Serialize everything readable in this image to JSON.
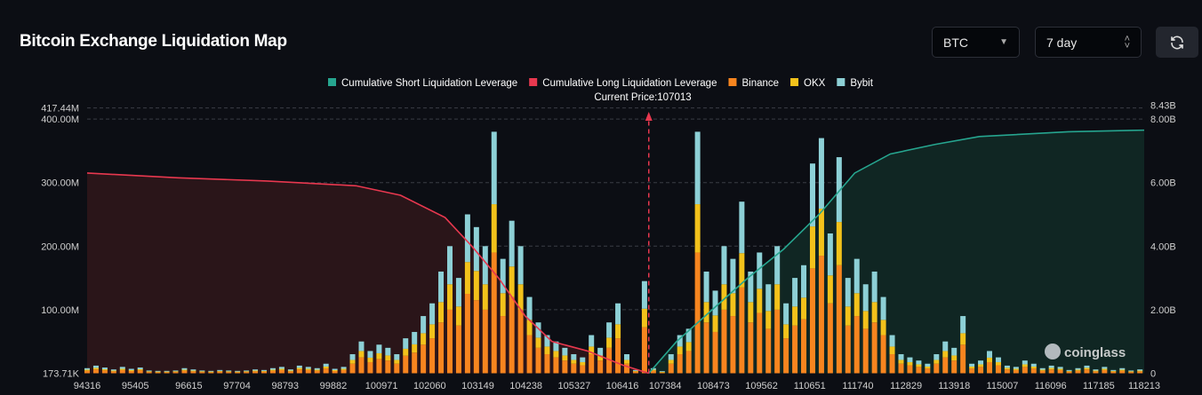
{
  "header": {
    "title": "Bitcoin Exchange Liquidation Map",
    "coin_select": "BTC",
    "period_select": "7 day",
    "refresh_icon": "refresh-icon"
  },
  "chart_data": {
    "type": "bar",
    "title": "",
    "legend": [
      {
        "name": "Cumulative Short Liquidation Leverage",
        "color": "#26a58f"
      },
      {
        "name": "Cumulative Long Liquidation Leverage",
        "color": "#e8384f"
      },
      {
        "name": "Binance",
        "color": "#f7851f"
      },
      {
        "name": "OKX",
        "color": "#f3c21b"
      },
      {
        "name": "Bybit",
        "color": "#8dd0d6"
      }
    ],
    "legend_placement": "top-center",
    "current_price_label": "Current Price:107013",
    "current_price": 107013,
    "x_ticks": [
      "94316",
      "95405",
      "96615",
      "97704",
      "98793",
      "99882",
      "100971",
      "102060",
      "103149",
      "104238",
      "105327",
      "106416",
      "107384",
      "108473",
      "109562",
      "110651",
      "111740",
      "112829",
      "113918",
      "115007",
      "116096",
      "117185",
      "118213"
    ],
    "x_range": [
      94316,
      118213
    ],
    "y_left_ticks": [
      "173.71K",
      "100.00M",
      "200.00M",
      "300.00M",
      "400.00M",
      "417.44M"
    ],
    "y_left_values": [
      0,
      100,
      200,
      300,
      400,
      417.44
    ],
    "y_right_ticks": [
      "0",
      "2.00B",
      "4.00B",
      "6.00B",
      "8.00B",
      "8.43B"
    ],
    "y_right_values": [
      0,
      2,
      4,
      6,
      8,
      8.43
    ],
    "bar_price_start": 94316,
    "bar_price_step": 200,
    "bar_totals_M": [
      8,
      12,
      9,
      6,
      10,
      7,
      9,
      4,
      3,
      3,
      4,
      8,
      6,
      4,
      3,
      5,
      4,
      3,
      4,
      6,
      5,
      8,
      10,
      6,
      12,
      10,
      8,
      15,
      7,
      10,
      30,
      50,
      35,
      45,
      40,
      30,
      55,
      65,
      90,
      110,
      160,
      200,
      150,
      250,
      230,
      200,
      380,
      180,
      240,
      200,
      120,
      80,
      60,
      50,
      40,
      30,
      25,
      60,
      40,
      80,
      110,
      30,
      5,
      145,
      8,
      2,
      30,
      60,
      70,
      380,
      160,
      130,
      200,
      180,
      270,
      160,
      190,
      140,
      200,
      110,
      150,
      170,
      330,
      370,
      220,
      340,
      150,
      180,
      140,
      160,
      120,
      60,
      30,
      25,
      20,
      15,
      30,
      50,
      40,
      90,
      15,
      20,
      35,
      25,
      12,
      10,
      20,
      15,
      8,
      12,
      10,
      5,
      8,
      12,
      6,
      10,
      5,
      8,
      4,
      6
    ],
    "exchange_share": {
      "Binance": 0.5,
      "OKX": 0.2,
      "Bybit": 0.3
    },
    "long_cumulative_B": [
      [
        94316,
        6.3
      ],
      [
        96369,
        6.15
      ],
      [
        98382,
        6.05
      ],
      [
        100395,
        5.9
      ],
      [
        101402,
        5.6
      ],
      [
        102408,
        4.9
      ],
      [
        103012,
        4.0
      ],
      [
        103616,
        3.0
      ],
      [
        104220,
        1.8
      ],
      [
        104824,
        1.0
      ],
      [
        105629,
        0.7
      ],
      [
        106434,
        0.25
      ],
      [
        107013,
        0
      ]
    ],
    "short_cumulative_B": [
      [
        107013,
        0
      ],
      [
        107642,
        1.0
      ],
      [
        108447,
        2.0
      ],
      [
        109253,
        3.0
      ],
      [
        110058,
        3.9
      ],
      [
        110863,
        5.0
      ],
      [
        111668,
        6.3
      ],
      [
        112473,
        6.9
      ],
      [
        113480,
        7.2
      ],
      [
        114486,
        7.45
      ],
      [
        116499,
        7.6
      ],
      [
        118213,
        7.65
      ]
    ],
    "grid": "horizontal-dashed",
    "watermark": "coinglass"
  }
}
